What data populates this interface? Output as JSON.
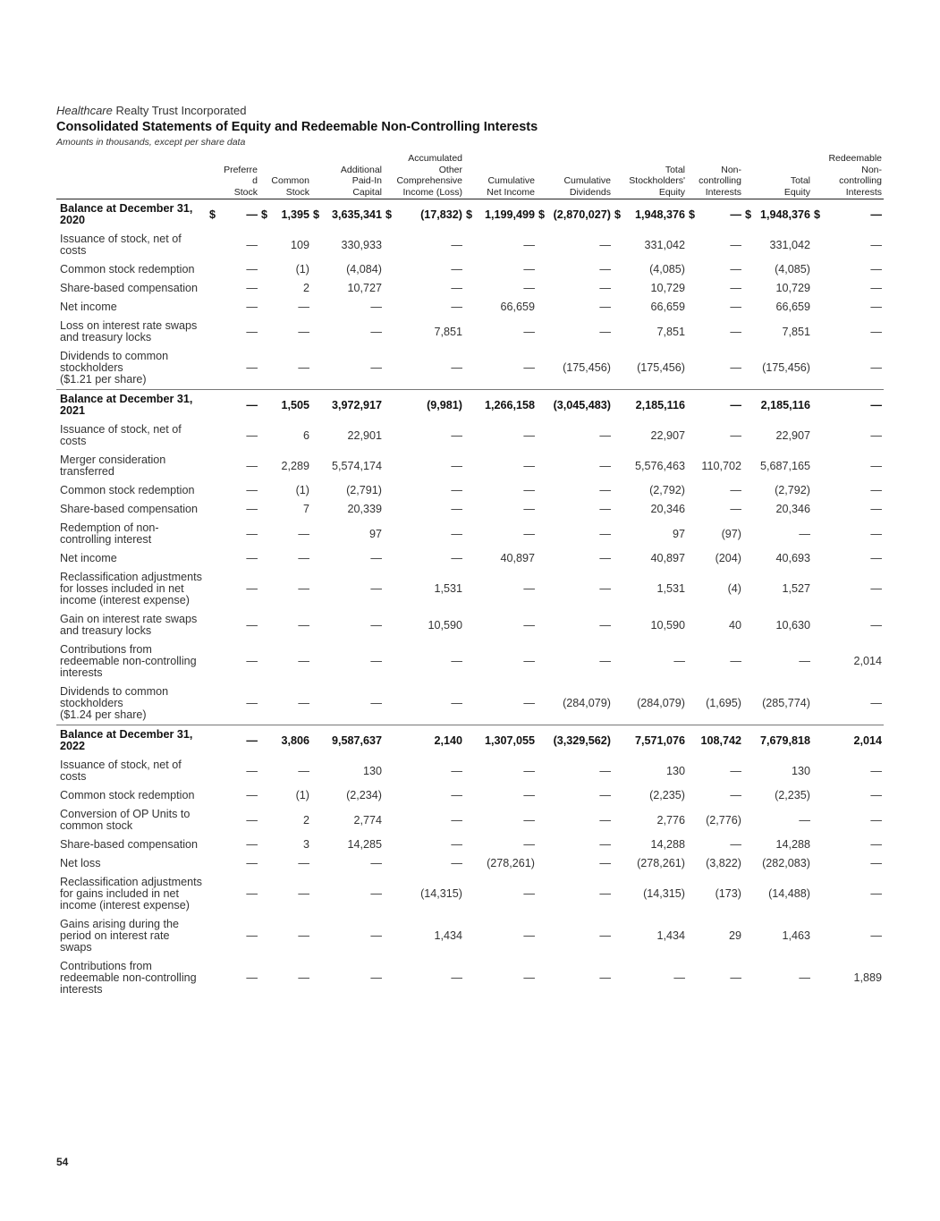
{
  "header": {
    "company_italic": "Healthcare",
    "company_rest": " Realty Trust Incorporated",
    "title": "Consolidated Statements of Equity and Redeemable Non-Controlling Interests",
    "subtitle": "Amounts in thousands, except per share data"
  },
  "columns": [
    "",
    "Preferre\nd\nStock",
    "Common\nStock",
    "Additional\nPaid-In\nCapital",
    "Accumulated\nOther\nComprehensive\nIncome (Loss)",
    "Cumulative\nNet Income",
    "Cumulative\nDividends",
    "Total\nStockholders'\nEquity",
    "Non-\ncontrolling\nInterests",
    "Total\nEquity",
    "Redeemable\nNon-\ncontrolling\nInterests"
  ],
  "rows": [
    {
      "label": "Balance at December 31, 2020",
      "bold": true,
      "sep": false,
      "values": [
        "—",
        "1,395",
        "3,635,341",
        "(17,832)",
        "1,199,499",
        "(2,870,027)",
        "1,948,376",
        "—",
        "1,948,376",
        "—"
      ],
      "dollars": [
        "$",
        "$",
        "$",
        "$",
        "$",
        "$",
        "$",
        "$",
        "$",
        "$"
      ]
    },
    {
      "label": "Issuance of stock, net of costs",
      "values": [
        "—",
        "109",
        "330,933",
        "—",
        "—",
        "—",
        "331,042",
        "—",
        "331,042",
        "—"
      ]
    },
    {
      "label": "Common stock redemption",
      "values": [
        "—",
        "(1)",
        "(4,084)",
        "—",
        "—",
        "—",
        "(4,085)",
        "—",
        "(4,085)",
        "—"
      ]
    },
    {
      "label": "Share-based compensation",
      "values": [
        "—",
        "2",
        "10,727",
        "—",
        "—",
        "—",
        "10,729",
        "—",
        "10,729",
        "—"
      ]
    },
    {
      "label": "Net income",
      "values": [
        "—",
        "—",
        "—",
        "—",
        "66,659",
        "—",
        "66,659",
        "—",
        "66,659",
        "—"
      ]
    },
    {
      "label": "Loss on interest rate swaps and treasury locks",
      "values": [
        "—",
        "—",
        "—",
        "7,851",
        "—",
        "—",
        "7,851",
        "—",
        "7,851",
        "—"
      ]
    },
    {
      "label": "Dividends to common stockholders\n($1.21 per share)",
      "values": [
        "—",
        "—",
        "—",
        "—",
        "—",
        "(175,456)",
        "(175,456)",
        "—",
        "(175,456)",
        "—"
      ]
    },
    {
      "label": "Balance at December 31, 2021",
      "bold": true,
      "sep": true,
      "values": [
        "—",
        "1,505",
        "3,972,917",
        "(9,981)",
        "1,266,158",
        "(3,045,483)",
        "2,185,116",
        "—",
        "2,185,116",
        "—"
      ]
    },
    {
      "label": "Issuance of stock, net of costs",
      "values": [
        "—",
        "6",
        "22,901",
        "—",
        "—",
        "—",
        "22,907",
        "—",
        "22,907",
        "—"
      ]
    },
    {
      "label": "Merger consideration transferred",
      "values": [
        "—",
        "2,289",
        "5,574,174",
        "—",
        "—",
        "—",
        "5,576,463",
        "110,702",
        "5,687,165",
        "—"
      ]
    },
    {
      "label": "Common stock redemption",
      "values": [
        "—",
        "(1)",
        "(2,791)",
        "—",
        "—",
        "—",
        "(2,792)",
        "—",
        "(2,792)",
        "—"
      ]
    },
    {
      "label": "Share-based compensation",
      "values": [
        "—",
        "7",
        "20,339",
        "—",
        "—",
        "—",
        "20,346",
        "—",
        "20,346",
        "—"
      ]
    },
    {
      "label": "Redemption of non-controlling interest",
      "values": [
        "—",
        "—",
        "97",
        "—",
        "—",
        "—",
        "97",
        "(97)",
        "—",
        "—"
      ]
    },
    {
      "label": "Net income",
      "values": [
        "—",
        "—",
        "—",
        "—",
        "40,897",
        "—",
        "40,897",
        "(204)",
        "40,693",
        "—"
      ]
    },
    {
      "label": "Reclassification adjustments for losses included in net income (interest expense)",
      "values": [
        "—",
        "—",
        "—",
        "1,531",
        "—",
        "—",
        "1,531",
        "(4)",
        "1,527",
        "—"
      ]
    },
    {
      "label": "Gain on interest rate swaps and treasury locks",
      "values": [
        "—",
        "—",
        "—",
        "10,590",
        "—",
        "—",
        "10,590",
        "40",
        "10,630",
        "—"
      ]
    },
    {
      "label": "Contributions from redeemable non-controlling interests",
      "values": [
        "—",
        "—",
        "—",
        "—",
        "—",
        "—",
        "—",
        "—",
        "—",
        "2,014"
      ]
    },
    {
      "label": "Dividends to common stockholders\n($1.24 per share)",
      "values": [
        "—",
        "—",
        "—",
        "—",
        "—",
        "(284,079)",
        "(284,079)",
        "(1,695)",
        "(285,774)",
        "—"
      ]
    },
    {
      "label": "Balance at December 31, 2022",
      "bold": true,
      "sep": true,
      "values": [
        "—",
        "3,806",
        "9,587,637",
        "2,140",
        "1,307,055",
        "(3,329,562)",
        "7,571,076",
        "108,742",
        "7,679,818",
        "2,014"
      ]
    },
    {
      "label": "Issuance of stock, net of costs",
      "values": [
        "—",
        "—",
        "130",
        "—",
        "—",
        "—",
        "130",
        "—",
        "130",
        "—"
      ]
    },
    {
      "label": "Common stock redemption",
      "values": [
        "—",
        "(1)",
        "(2,234)",
        "—",
        "—",
        "—",
        "(2,235)",
        "—",
        "(2,235)",
        "—"
      ]
    },
    {
      "label": "Conversion of OP Units to common stock",
      "values": [
        "—",
        "2",
        "2,774",
        "—",
        "—",
        "—",
        "2,776",
        "(2,776)",
        "—",
        "—"
      ]
    },
    {
      "label": "Share-based compensation",
      "values": [
        "—",
        "3",
        "14,285",
        "—",
        "—",
        "—",
        "14,288",
        "—",
        "14,288",
        "—"
      ]
    },
    {
      "label": "Net loss",
      "values": [
        "—",
        "—",
        "—",
        "—",
        "(278,261)",
        "—",
        "(278,261)",
        "(3,822)",
        "(282,083)",
        "—"
      ]
    },
    {
      "label": "Reclassification adjustments for gains included in net income (interest expense)",
      "values": [
        "—",
        "—",
        "—",
        "(14,315)",
        "—",
        "—",
        "(14,315)",
        "(173)",
        "(14,488)",
        "—"
      ]
    },
    {
      "label": "Gains arising during the period on interest rate swaps",
      "values": [
        "—",
        "—",
        "—",
        "1,434",
        "—",
        "—",
        "1,434",
        "29",
        "1,463",
        "—"
      ]
    },
    {
      "label": "Contributions from redeemable non-controlling interests",
      "values": [
        "—",
        "—",
        "—",
        "—",
        "—",
        "—",
        "—",
        "—",
        "—",
        "1,889"
      ]
    }
  ],
  "footer": {
    "page_number": "54"
  }
}
